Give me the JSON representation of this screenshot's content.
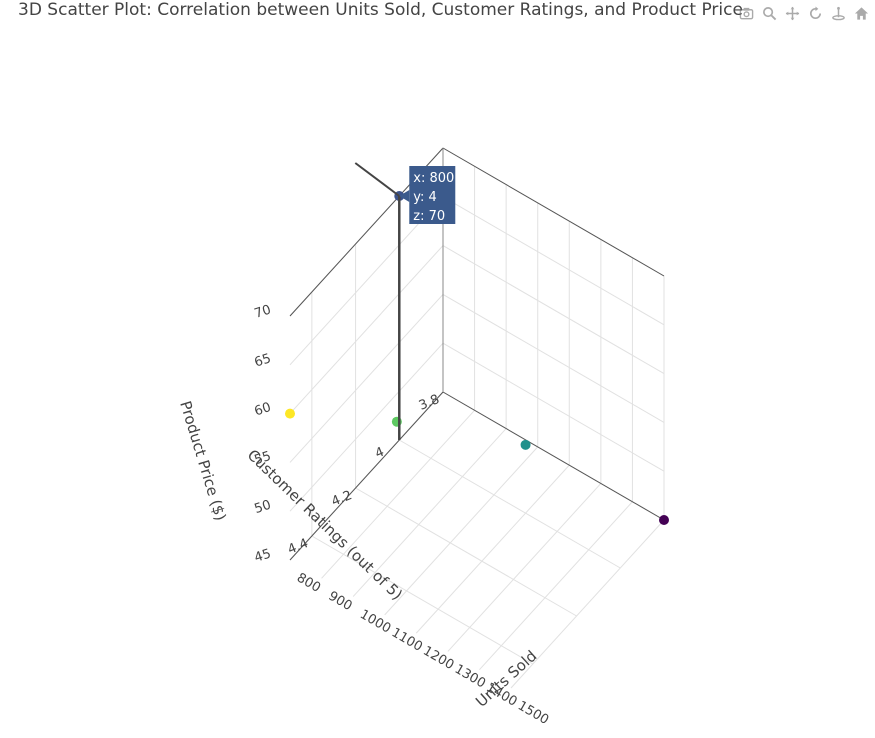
{
  "title": "3D Scatter Plot: Correlation between Units Sold, Customer Ratings, and Product Price",
  "modebar": {
    "icons": [
      "camera-icon",
      "zoom-icon",
      "pan-icon",
      "orbit-icon",
      "turntable-icon",
      "home-icon"
    ]
  },
  "hover": {
    "x_label": "x: 800",
    "y_label": "y: 4",
    "z_label": "z: 70",
    "background": "#3b5a8c"
  },
  "chart_data": {
    "type": "scatter3d",
    "title": "3D Scatter Plot: Correlation between Units Sold, Customer Ratings, and Product Price",
    "xaxis": {
      "title": "Units Sold",
      "range": [
        800,
        1500
      ],
      "ticks": [
        800,
        900,
        1000,
        1100,
        1200,
        1300,
        1400,
        1500
      ]
    },
    "yaxis": {
      "title": "Customer Ratings (out of 5)",
      "range": [
        3.8,
        4.5
      ],
      "ticks": [
        3.8,
        4,
        4.2,
        4.4
      ]
    },
    "zaxis": {
      "title": "Product Price ($)",
      "range": [
        45,
        70
      ],
      "ticks": [
        45,
        50,
        55,
        60,
        65,
        70
      ]
    },
    "grid": true,
    "colorscale": "viridis",
    "points": [
      {
        "x": 1500,
        "y": 3.8,
        "z": 45,
        "color": "#440154"
      },
      {
        "x": 1200,
        "y": 4.0,
        "z": 52,
        "color": "#21918c"
      },
      {
        "x": 1000,
        "y": 4.3,
        "z": 58,
        "color": "#5ec962"
      },
      {
        "x": 800,
        "y": 4.5,
        "z": 60,
        "color": "#fde725"
      },
      {
        "x": 800,
        "y": 4.0,
        "z": 70,
        "color": "#3b528b"
      }
    ]
  }
}
